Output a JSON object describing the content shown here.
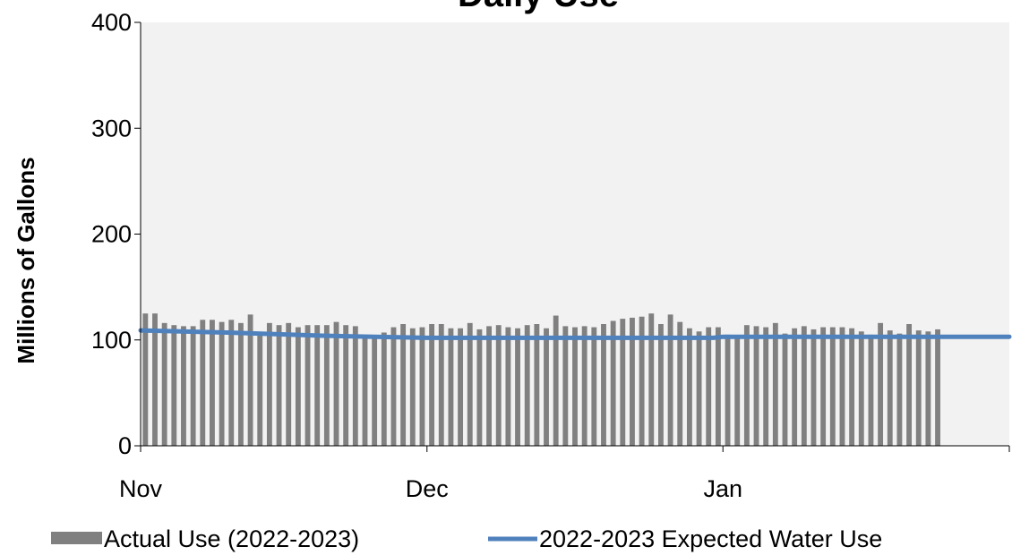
{
  "chart_data": {
    "type": "bar",
    "title": "Daily Use",
    "xlabel": "",
    "ylabel": "Millions of Gallons",
    "ylim": [
      0,
      400
    ],
    "yticks": [
      0,
      100,
      200,
      300,
      400
    ],
    "xlim": [
      "2022-11-01",
      "2023-01-31"
    ],
    "month_ticks": [
      {
        "label": "Nov",
        "date": "2022-11-01"
      },
      {
        "label": "Dec",
        "date": "2022-12-01"
      },
      {
        "label": "Jan",
        "date": "2023-01-01"
      }
    ],
    "grid": false,
    "legend_position": "bottom",
    "series": [
      {
        "name": "Actual Use (2022-2023)",
        "kind": "bar",
        "color": "#808080",
        "start_date": "2022-11-01",
        "values": [
          125,
          125,
          116,
          114,
          113,
          113,
          119,
          119,
          117,
          119,
          116,
          124,
          104,
          116,
          114,
          116,
          112,
          114,
          114,
          114,
          117,
          114,
          113,
          105,
          104,
          107,
          112,
          115,
          111,
          112,
          115,
          115,
          111,
          111,
          116,
          110,
          113,
          114,
          112,
          111,
          114,
          115,
          111,
          123,
          113,
          112,
          113,
          112,
          115,
          118,
          120,
          121,
          122,
          125,
          115,
          124,
          117,
          111,
          108,
          112,
          112,
          105,
          104,
          114,
          113,
          112,
          116,
          106,
          111,
          113,
          110,
          112,
          112,
          112,
          111,
          108,
          105,
          116,
          109,
          106,
          115,
          109,
          108,
          110
        ]
      },
      {
        "name": "2022-2023 Expected Water Use",
        "kind": "line",
        "color": "#4f81bd",
        "points": [
          {
            "date": "2022-11-01",
            "value": 109
          },
          {
            "date": "2022-11-10",
            "value": 107
          },
          {
            "date": "2022-11-20",
            "value": 104
          },
          {
            "date": "2022-12-01",
            "value": 102
          },
          {
            "date": "2022-12-31",
            "value": 102
          },
          {
            "date": "2023-01-01",
            "value": 103
          },
          {
            "date": "2023-01-31",
            "value": 103
          }
        ]
      }
    ]
  }
}
